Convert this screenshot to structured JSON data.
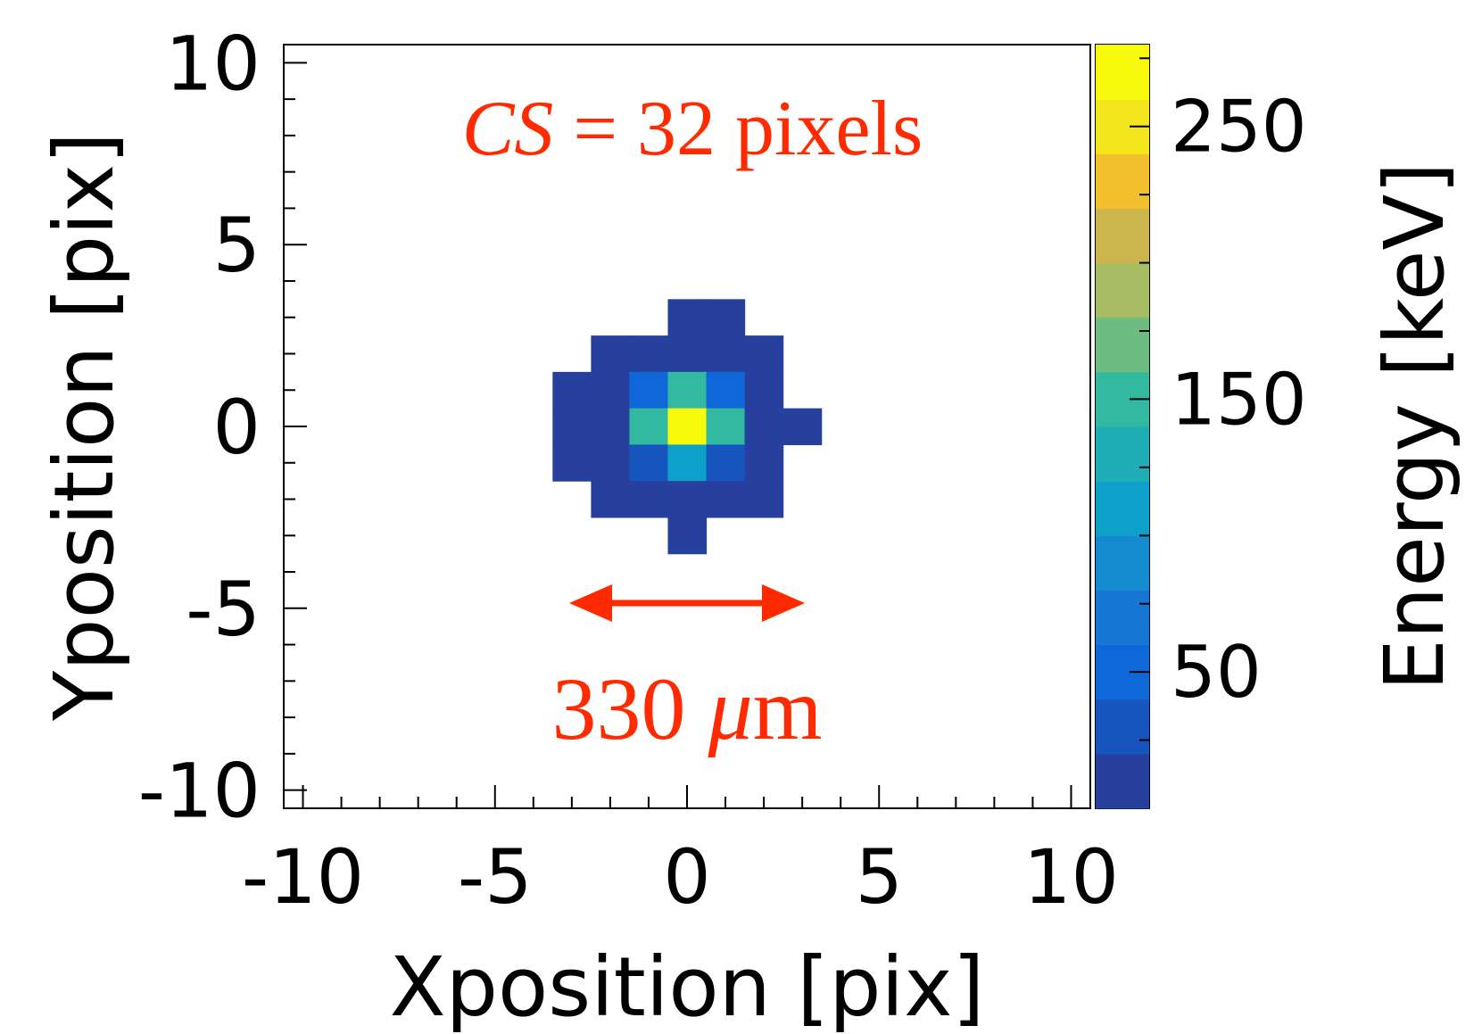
{
  "chart_data": {
    "type": "heatmap",
    "title": "",
    "xlabel": "Xposition [pix]",
    "ylabel": "Yposition [pix]",
    "zlabel": "Energy [keV]",
    "xlim": [
      -10.5,
      10.5
    ],
    "ylim": [
      -10.5,
      10.5
    ],
    "zlim": [
      0,
      280
    ],
    "x_ticks": [
      -10,
      -5,
      0,
      5,
      10
    ],
    "x_tick_labels": [
      "-10",
      "-5",
      "0",
      "5",
      "10"
    ],
    "y_ticks": [
      -10,
      -5,
      0,
      5,
      10
    ],
    "y_tick_labels": [
      "-10",
      "-5",
      "0",
      "5",
      "10"
    ],
    "z_ticks": [
      50,
      150,
      250
    ],
    "z_tick_labels": [
      "50",
      "150",
      "250"
    ],
    "colormap": [
      "#27409E",
      "#1655BE",
      "#0F68D7",
      "#1678D4",
      "#148BD0",
      "#0DA0C8",
      "#1FAEB6",
      "#33B9A0",
      "#6DBD83",
      "#A6BD63",
      "#CDB54D",
      "#F1C02C",
      "#F3E61D",
      "#F9FB0E"
    ],
    "cells": [
      {
        "x": 0,
        "y": 3,
        "value": 3
      },
      {
        "x": 1,
        "y": 3,
        "value": 3
      },
      {
        "x": -2,
        "y": 2,
        "value": 3
      },
      {
        "x": -1,
        "y": 2,
        "value": 3
      },
      {
        "x": 0,
        "y": 2,
        "value": 3
      },
      {
        "x": 1,
        "y": 2,
        "value": 3
      },
      {
        "x": 2,
        "y": 2,
        "value": 3
      },
      {
        "x": -3,
        "y": 1,
        "value": 3
      },
      {
        "x": -2,
        "y": 1,
        "value": 3
      },
      {
        "x": -1,
        "y": 1,
        "value": 45
      },
      {
        "x": 0,
        "y": 1,
        "value": 155
      },
      {
        "x": 1,
        "y": 1,
        "value": 45
      },
      {
        "x": 2,
        "y": 1,
        "value": 3
      },
      {
        "x": -3,
        "y": 0,
        "value": 3
      },
      {
        "x": -2,
        "y": 0,
        "value": 3
      },
      {
        "x": -1,
        "y": 0,
        "value": 155
      },
      {
        "x": 0,
        "y": 0,
        "value": 280
      },
      {
        "x": 1,
        "y": 0,
        "value": 155
      },
      {
        "x": 2,
        "y": 0,
        "value": 3
      },
      {
        "x": 3,
        "y": 0,
        "value": 3
      },
      {
        "x": -3,
        "y": -1,
        "value": 3
      },
      {
        "x": -2,
        "y": -1,
        "value": 3
      },
      {
        "x": -1,
        "y": -1,
        "value": 30
      },
      {
        "x": 0,
        "y": -1,
        "value": 100
      },
      {
        "x": 1,
        "y": -1,
        "value": 30
      },
      {
        "x": 2,
        "y": -1,
        "value": 3
      },
      {
        "x": -2,
        "y": -2,
        "value": 3
      },
      {
        "x": -1,
        "y": -2,
        "value": 3
      },
      {
        "x": 0,
        "y": -2,
        "value": 3
      },
      {
        "x": 1,
        "y": -2,
        "value": 3
      },
      {
        "x": 2,
        "y": -2,
        "value": 3
      },
      {
        "x": 0,
        "y": -3,
        "value": 3
      }
    ],
    "annotations": {
      "cs_label": "CS",
      "cs_value": " = 32 pixels",
      "size_number": "330 ",
      "size_unit_mu": "μ",
      "size_unit_m": "m",
      "arrow_color": "#FF2A00"
    }
  }
}
